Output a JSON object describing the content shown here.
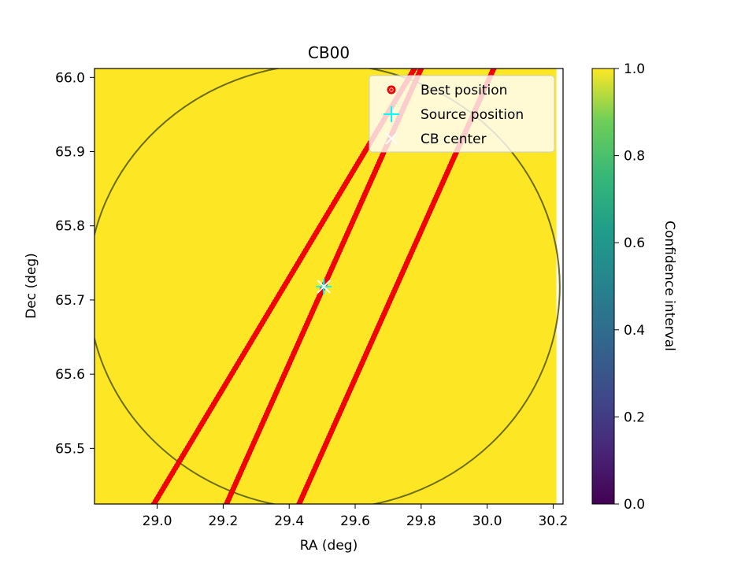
{
  "chart_data": {
    "type": "scatter",
    "title": "CB00",
    "xlabel": "RA (deg)",
    "ylabel": "Dec (deg)",
    "xlim": [
      28.81,
      30.23
    ],
    "ylim": [
      65.425,
      66.012
    ],
    "xticks": [
      29.0,
      29.2,
      29.4,
      29.6,
      29.8,
      30.0,
      30.2
    ],
    "yticks": [
      65.5,
      65.6,
      65.7,
      65.8,
      65.9,
      66.0
    ],
    "xtick_labels": [
      "29.0",
      "29.2",
      "29.4",
      "29.6",
      "29.8",
      "30.0",
      "30.2"
    ],
    "ytick_labels": [
      "65.5",
      "65.6",
      "65.7",
      "65.8",
      "65.9",
      "66.0"
    ],
    "heatmap_value": 1.0,
    "heatmap_color": "#fde725",
    "heatmap_xmax": 30.21,
    "best_position_lines": [
      {
        "x": [
          28.99,
          29.78
        ],
        "y": [
          65.425,
          66.012
        ]
      },
      {
        "x": [
          29.21,
          29.8
        ],
        "y": [
          65.425,
          66.012
        ]
      },
      {
        "x": [
          29.43,
          30.02
        ],
        "y": [
          65.425,
          66.012
        ]
      }
    ],
    "point_count_per_line": 170,
    "source_position": {
      "x": 29.505,
      "y": 65.718
    },
    "cb_center": {
      "x": 29.505,
      "y": 65.718
    },
    "cb_circle": {
      "cx": 29.505,
      "cy": 65.718,
      "rx": 0.715,
      "ry": 0.3
    },
    "colorbar": {
      "label": "Confidence interval",
      "range": [
        0.0,
        1.0
      ],
      "ticks": [
        0.0,
        0.2,
        0.4,
        0.6,
        0.8,
        1.0
      ],
      "tick_labels": [
        "0.0",
        "0.2",
        "0.4",
        "0.6",
        "0.8",
        "1.0"
      ],
      "colormap": "viridis"
    },
    "legend": {
      "placement": "top-right",
      "entries": [
        {
          "label": "Best position",
          "marker": "red-dot",
          "color": "#ff0000"
        },
        {
          "label": "Source position",
          "marker": "plus",
          "color": "#00ffff"
        },
        {
          "label": "CB center",
          "marker": "x",
          "color": "#ffffff"
        }
      ]
    },
    "grid": false
  }
}
